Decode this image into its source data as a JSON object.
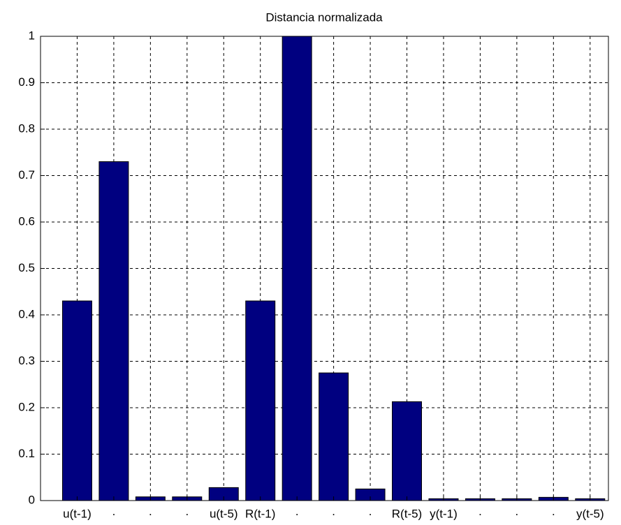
{
  "chart_data": {
    "type": "bar",
    "title": "Distancia normalizada",
    "categories": [
      "u(t-1)",
      "·",
      "·",
      "·",
      "u(t-5)",
      "R(t-1)",
      "·",
      "·",
      "·",
      "R(t-5)",
      "y(t-1)",
      "·",
      "·",
      "·",
      "y(t-5)"
    ],
    "values": [
      0.43,
      0.73,
      0.008,
      0.008,
      0.028,
      0.43,
      1.0,
      0.275,
      0.025,
      0.213,
      0.004,
      0.004,
      0.004,
      0.007,
      0.004
    ],
    "color": "#000080",
    "xlim": [
      0,
      15.5
    ],
    "xticks": [
      1,
      2,
      3,
      4,
      5,
      6,
      7,
      8,
      9,
      10,
      11,
      12,
      13,
      14,
      15
    ],
    "ylim": [
      0,
      1
    ],
    "yticks": [
      0,
      0.1,
      0.2,
      0.3,
      0.4,
      0.5,
      0.6,
      0.7,
      0.8,
      0.9,
      1
    ],
    "grid": true
  }
}
